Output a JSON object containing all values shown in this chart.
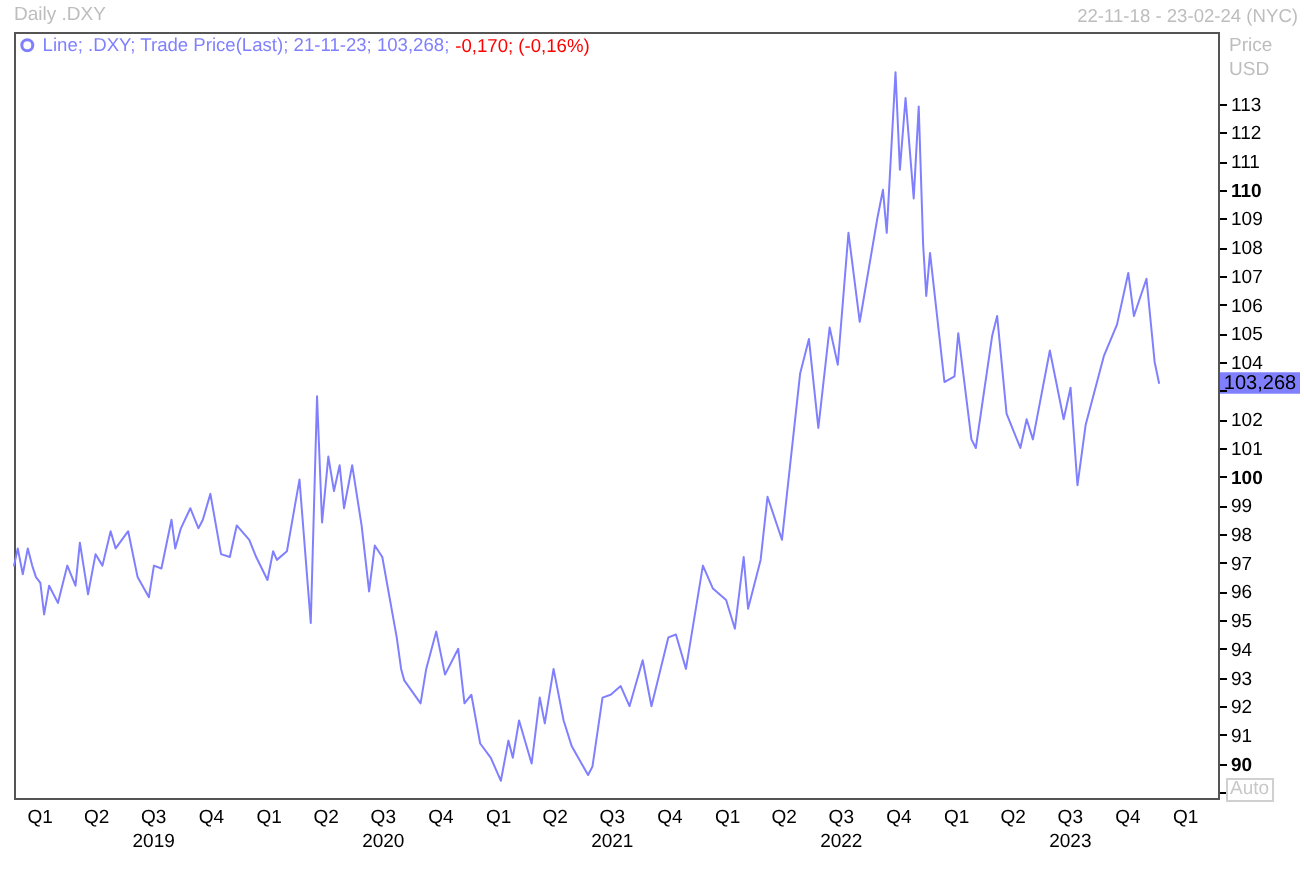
{
  "chart_data": {
    "type": "line",
    "title": "Daily .DXY",
    "ylabel": "Price USD",
    "annotations": [
      "22-11-18 - 23-02-24 (NYC)",
      "-0,170; (-0,16%)",
      "Auto",
      "103,268"
    ],
    "x": [
      "2018-11-22",
      "2018-11-28",
      "2018-12-06",
      "2018-12-14",
      "2018-12-21",
      "2018-12-27",
      "2019-01-03",
      "2019-01-09",
      "2019-01-17",
      "2019-01-31",
      "2019-02-15",
      "2019-02-28",
      "2019-03-07",
      "2019-03-20",
      "2019-04-01",
      "2019-04-12",
      "2019-04-25",
      "2019-05-03",
      "2019-05-23",
      "2019-06-07",
      "2019-06-25",
      "2019-07-03",
      "2019-07-15",
      "2019-07-31",
      "2019-08-06",
      "2019-08-15",
      "2019-08-30",
      "2019-09-12",
      "2019-09-19",
      "2019-10-01",
      "2019-10-18",
      "2019-11-01",
      "2019-11-12",
      "2019-12-02",
      "2019-12-13",
      "2019-12-31",
      "2020-01-09",
      "2020-01-15",
      "2020-01-31",
      "2020-02-20",
      "2020-03-09",
      "2020-03-19",
      "2020-03-27",
      "2020-04-06",
      "2020-04-15",
      "2020-04-24",
      "2020-05-01",
      "2020-05-14",
      "2020-05-29",
      "2020-06-10",
      "2020-06-19",
      "2020-07-01",
      "2020-07-24",
      "2020-07-31",
      "2020-08-05",
      "2020-08-31",
      "2020-09-09",
      "2020-09-25",
      "2020-10-09",
      "2020-10-30",
      "2020-11-09",
      "2020-11-20",
      "2020-12-04",
      "2020-12-21",
      "2021-01-06",
      "2021-01-18",
      "2021-01-25",
      "2021-02-04",
      "2021-02-24",
      "2021-03-09",
      "2021-03-17",
      "2021-03-31",
      "2021-04-16",
      "2021-04-29",
      "2021-05-25",
      "2021-06-01",
      "2021-06-17",
      "2021-06-30",
      "2021-07-16",
      "2021-07-30",
      "2021-08-20",
      "2021-09-03",
      "2021-09-30",
      "2021-10-12",
      "2021-10-28",
      "2021-11-24",
      "2021-12-10",
      "2021-12-31",
      "2022-01-14",
      "2022-01-28",
      "2022-02-04",
      "2022-02-24",
      "2022-03-07",
      "2022-03-30",
      "2022-04-28",
      "2022-05-12",
      "2022-05-27",
      "2022-06-14",
      "2022-06-27",
      "2022-07-14",
      "2022-08-01",
      "2022-08-29",
      "2022-09-07",
      "2022-09-13",
      "2022-09-27",
      "2022-10-04",
      "2022-10-13",
      "2022-10-26",
      "2022-11-03",
      "2022-11-10",
      "2022-11-15",
      "2022-11-21",
      "2022-12-14",
      "2022-12-30",
      "2023-01-05",
      "2023-01-26",
      "2023-02-02",
      "2023-02-28",
      "2023-03-08",
      "2023-03-23",
      "2023-04-14",
      "2023-04-24",
      "2023-05-04",
      "2023-05-31",
      "2023-06-22",
      "2023-07-03",
      "2023-07-14",
      "2023-07-27",
      "2023-08-25",
      "2023-09-15",
      "2023-10-03",
      "2023-10-12",
      "2023-11-01",
      "2023-11-14",
      "2023-11-21"
    ],
    "series": [
      {
        "name": "Line; .DXY; Trade Price(Last); 21-11-23; 103,268;",
        "color": "#8080ff",
        "values": [
          96.9,
          97.5,
          96.6,
          97.5,
          96.9,
          96.5,
          96.3,
          95.2,
          96.2,
          95.6,
          96.9,
          96.2,
          97.7,
          95.9,
          97.3,
          96.9,
          98.1,
          97.5,
          98.1,
          96.5,
          95.8,
          96.9,
          96.8,
          98.5,
          97.5,
          98.2,
          98.9,
          98.2,
          98.5,
          99.4,
          97.3,
          97.2,
          98.3,
          97.8,
          97.2,
          96.4,
          97.4,
          97.1,
          97.4,
          99.9,
          94.9,
          102.8,
          98.4,
          100.7,
          99.5,
          100.4,
          98.9,
          100.4,
          98.3,
          96.0,
          97.6,
          97.2,
          94.4,
          93.3,
          92.9,
          92.1,
          93.3,
          94.6,
          93.1,
          94.0,
          92.1,
          92.4,
          90.7,
          90.2,
          89.4,
          90.8,
          90.2,
          91.5,
          90.0,
          92.3,
          91.4,
          93.3,
          91.5,
          90.6,
          89.6,
          89.9,
          92.3,
          92.4,
          92.7,
          92.0,
          93.6,
          92.0,
          94.4,
          94.5,
          93.3,
          96.9,
          96.1,
          95.7,
          94.7,
          97.2,
          95.4,
          97.1,
          99.3,
          97.8,
          103.6,
          104.8,
          101.7,
          105.2,
          103.9,
          108.5,
          105.4,
          109.0,
          110.0,
          108.5,
          114.1,
          110.7,
          113.2,
          109.7,
          112.9,
          108.1,
          106.3,
          107.8,
          103.3,
          103.5,
          105.0,
          101.3,
          101.0,
          104.9,
          105.6,
          102.2,
          101.0,
          102.0,
          101.3,
          104.4,
          102.0,
          103.1,
          99.7,
          101.8,
          104.2,
          105.3,
          107.1,
          105.6,
          106.9,
          104.0,
          103.268
        ]
      }
    ],
    "xlim": [
      "2018-11-22",
      "2024-02-23"
    ],
    "xticks": [
      {
        "value": "2019-01-01",
        "label": "Q1"
      },
      {
        "value": "2019-04-01",
        "label": "Q2"
      },
      {
        "value": "2019-07-01",
        "label": "Q3\n2019"
      },
      {
        "value": "2019-10-01",
        "label": "Q4"
      },
      {
        "value": "2020-01-01",
        "label": "Q1"
      },
      {
        "value": "2020-04-01",
        "label": "Q2"
      },
      {
        "value": "2020-07-01",
        "label": "Q3\n2020"
      },
      {
        "value": "2020-10-01",
        "label": "Q4"
      },
      {
        "value": "2021-01-01",
        "label": "Q1"
      },
      {
        "value": "2021-04-01",
        "label": "Q2"
      },
      {
        "value": "2021-07-01",
        "label": "Q3\n2021"
      },
      {
        "value": "2021-10-01",
        "label": "Q4"
      },
      {
        "value": "2022-01-01",
        "label": "Q1"
      },
      {
        "value": "2022-04-01",
        "label": "Q2"
      },
      {
        "value": "2022-07-01",
        "label": "Q3\n2022"
      },
      {
        "value": "2022-10-01",
        "label": "Q4"
      },
      {
        "value": "2023-01-01",
        "label": "Q1"
      },
      {
        "value": "2023-04-01",
        "label": "Q2"
      },
      {
        "value": "2023-07-01",
        "label": "Q3\n2023"
      },
      {
        "value": "2023-10-01",
        "label": "Q4"
      },
      {
        "value": "2024-01-01",
        "label": "Q1"
      }
    ],
    "ylim": [
      88.8,
      115.5
    ],
    "yticks": [
      {
        "value": 89,
        "label": null
      },
      90,
      91,
      92,
      93,
      94,
      95,
      96,
      97,
      98,
      99,
      100,
      101,
      102,
      {
        "value": 103,
        "label": null
      },
      104,
      105,
      106,
      107,
      108,
      109,
      110,
      111,
      112,
      113
    ],
    "legend": "top left"
  }
}
